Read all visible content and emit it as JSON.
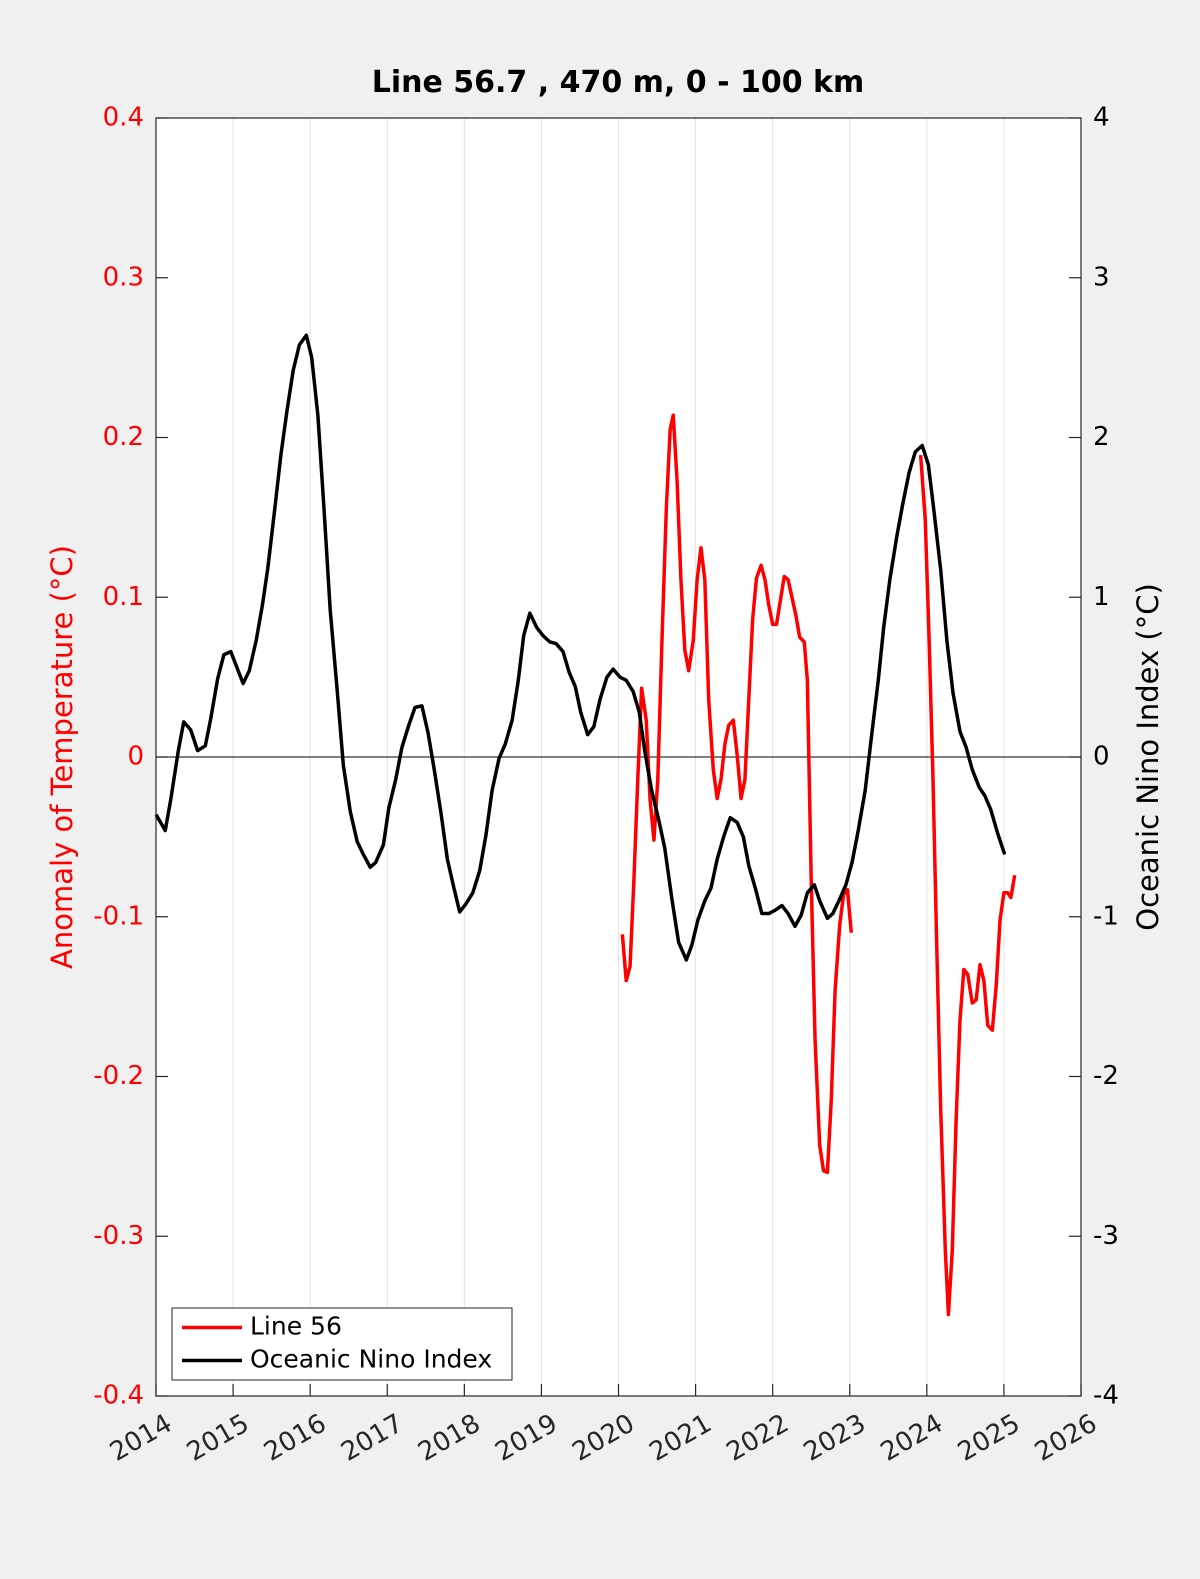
{
  "chart_data": {
    "type": "line",
    "title": "Line 56.7 , 470 m, 0 - 100 km",
    "y_label": "Anomaly of Temperature (°C)",
    "y2_label": "Oceanic Nino Index (°C)",
    "y_axis_color": "#ff0000",
    "y2_axis_color": "#000000",
    "xlim": [
      2014,
      2026
    ],
    "xticks": [
      2014,
      2015,
      2016,
      2017,
      2018,
      2019,
      2020,
      2021,
      2022,
      2023,
      2024,
      2025,
      2026
    ],
    "ylim": [
      -0.4,
      0.4
    ],
    "yticks": [
      -0.4,
      -0.3,
      -0.2,
      -0.1,
      0,
      0.1,
      0.2,
      0.3,
      0.4
    ],
    "y2lim": [
      -4,
      4
    ],
    "y2ticks": [
      -4,
      -3,
      -2,
      -1,
      0,
      1,
      2,
      3,
      4
    ],
    "grid": true,
    "legend": "lower left",
    "series": [
      {
        "name": "Line 56",
        "color": "#ff0000",
        "axis": "y",
        "x": [
          2020.05,
          2020.1,
          2020.15,
          2020.2,
          2020.25,
          2020.3,
          2020.36,
          2020.41,
          2020.46,
          2020.51,
          2020.56,
          2020.62,
          2020.67,
          2020.71,
          2020.76,
          2020.81,
          2020.86,
          2020.91,
          2020.97,
          2021.02,
          2021.07,
          2021.12,
          2021.17,
          2021.23,
          2021.28,
          2021.33,
          2021.38,
          2021.43,
          2021.49,
          2021.54,
          2021.59,
          2021.64,
          2021.69,
          2021.74,
          2021.79,
          2021.85,
          2021.9,
          2021.95,
          2022.0,
          2022.05,
          2022.1,
          2022.15,
          2022.2,
          2022.25,
          2022.3,
          2022.35,
          2022.41,
          2022.45,
          2022.5,
          2022.55,
          2022.61,
          2022.66,
          2022.71,
          2022.76,
          2022.81,
          2022.87,
          2022.92,
          2022.97,
          2023.02,
          2023.5,
          2023.92,
          2023.98,
          2024.03,
          2024.08,
          2024.13,
          2024.18,
          2024.24,
          2024.28,
          2024.33,
          2024.38,
          2024.43,
          2024.48,
          2024.53,
          2024.59,
          2024.64,
          2024.69,
          2024.74,
          2024.79,
          2024.85,
          2024.9,
          2024.95,
          2025.0,
          2025.05,
          2025.09,
          2025.14
        ],
        "values": [
          -0.111,
          -0.14,
          -0.131,
          -0.077,
          -0.014,
          0.043,
          0.023,
          -0.027,
          -0.052,
          -0.014,
          0.067,
          0.155,
          0.205,
          0.214,
          0.173,
          0.111,
          0.067,
          0.054,
          0.073,
          0.111,
          0.131,
          0.111,
          0.036,
          -0.008,
          -0.026,
          -0.014,
          0.008,
          0.02,
          0.023,
          0.001,
          -0.026,
          -0.014,
          0.036,
          0.086,
          0.112,
          0.12,
          0.111,
          0.095,
          0.083,
          0.083,
          0.098,
          0.113,
          0.111,
          0.1,
          0.089,
          0.075,
          0.072,
          0.048,
          -0.077,
          -0.177,
          -0.243,
          -0.259,
          -0.26,
          -0.215,
          -0.146,
          -0.105,
          -0.086,
          -0.083,
          -0.11,
          null,
          0.189,
          0.148,
          0.073,
          -0.014,
          -0.121,
          -0.221,
          -0.309,
          -0.349,
          -0.309,
          -0.227,
          -0.165,
          -0.133,
          -0.136,
          -0.154,
          -0.152,
          -0.13,
          -0.14,
          -0.168,
          -0.171,
          -0.143,
          -0.102,
          -0.085,
          -0.085,
          -0.088,
          -0.074
        ]
      },
      {
        "name": "Oceanic Nino Index",
        "color": "#000000",
        "axis": "y2",
        "x": [
          2014.0,
          2014.12,
          2014.19,
          2014.29,
          2014.36,
          2014.45,
          2014.54,
          2014.64,
          2014.71,
          2014.8,
          2014.88,
          2014.97,
          2015.05,
          2015.13,
          2015.21,
          2015.3,
          2015.38,
          2015.45,
          2015.54,
          2015.62,
          2015.7,
          2015.78,
          2015.86,
          2015.95,
          2016.02,
          2016.1,
          2016.18,
          2016.26,
          2016.35,
          2016.43,
          2016.52,
          2016.61,
          2016.69,
          2016.78,
          2016.85,
          2016.95,
          2017.02,
          2017.11,
          2017.19,
          2017.28,
          2017.36,
          2017.45,
          2017.53,
          2017.61,
          2017.7,
          2017.78,
          2017.87,
          2017.94,
          2018.02,
          2018.11,
          2018.2,
          2018.28,
          2018.36,
          2018.45,
          2018.53,
          2018.62,
          2018.7,
          2018.77,
          2018.85,
          2018.94,
          2019.02,
          2019.11,
          2019.19,
          2019.28,
          2019.36,
          2019.44,
          2019.51,
          2019.6,
          2019.68,
          2019.76,
          2019.85,
          2019.93,
          2020.02,
          2020.1,
          2020.19,
          2020.27,
          2020.34,
          2020.43,
          2020.52,
          2020.6,
          2020.69,
          2020.78,
          2020.88,
          2020.95,
          2021.03,
          2021.12,
          2021.2,
          2021.28,
          2021.37,
          2021.45,
          2021.54,
          2021.62,
          2021.69,
          2021.78,
          2021.86,
          2021.95,
          2022.03,
          2022.12,
          2022.2,
          2022.29,
          2022.37,
          2022.45,
          2022.54,
          2022.61,
          2022.71,
          2022.78,
          2022.86,
          2022.95,
          2023.03,
          2023.11,
          2023.2,
          2023.28,
          2023.37,
          2023.44,
          2023.52,
          2023.61,
          2023.69,
          2023.77,
          2023.85,
          2023.94,
          2024.02,
          2024.09,
          2024.18,
          2024.26,
          2024.34,
          2024.43,
          2024.51,
          2024.59,
          2024.68,
          2024.75,
          2024.83,
          2024.92,
          2025.01
        ],
        "values": [
          -0.36,
          -0.46,
          -0.27,
          0.04,
          0.22,
          0.17,
          0.04,
          0.07,
          0.24,
          0.49,
          0.64,
          0.66,
          0.56,
          0.46,
          0.54,
          0.73,
          0.95,
          1.18,
          1.55,
          1.89,
          2.17,
          2.42,
          2.58,
          2.64,
          2.5,
          2.14,
          1.55,
          0.92,
          0.42,
          -0.05,
          -0.34,
          -0.53,
          -0.61,
          -0.69,
          -0.66,
          -0.55,
          -0.32,
          -0.14,
          0.06,
          0.2,
          0.31,
          0.32,
          0.15,
          -0.08,
          -0.36,
          -0.64,
          -0.83,
          -0.97,
          -0.92,
          -0.85,
          -0.71,
          -0.49,
          -0.21,
          -0.01,
          0.08,
          0.23,
          0.48,
          0.76,
          0.9,
          0.81,
          0.76,
          0.72,
          0.71,
          0.66,
          0.53,
          0.44,
          0.28,
          0.14,
          0.19,
          0.36,
          0.5,
          0.55,
          0.5,
          0.48,
          0.41,
          0.28,
          0.04,
          -0.21,
          -0.39,
          -0.57,
          -0.88,
          -1.16,
          -1.27,
          -1.18,
          -1.02,
          -0.9,
          -0.82,
          -0.64,
          -0.49,
          -0.38,
          -0.41,
          -0.5,
          -0.68,
          -0.83,
          -0.98,
          -0.98,
          -0.96,
          -0.93,
          -0.98,
          -1.06,
          -0.99,
          -0.85,
          -0.8,
          -0.9,
          -1.01,
          -0.98,
          -0.9,
          -0.8,
          -0.66,
          -0.46,
          -0.21,
          0.12,
          0.48,
          0.81,
          1.11,
          1.38,
          1.59,
          1.78,
          1.91,
          1.95,
          1.83,
          1.55,
          1.17,
          0.73,
          0.4,
          0.16,
          0.06,
          -0.08,
          -0.19,
          -0.24,
          -0.33,
          -0.48,
          -0.61
        ]
      }
    ]
  }
}
